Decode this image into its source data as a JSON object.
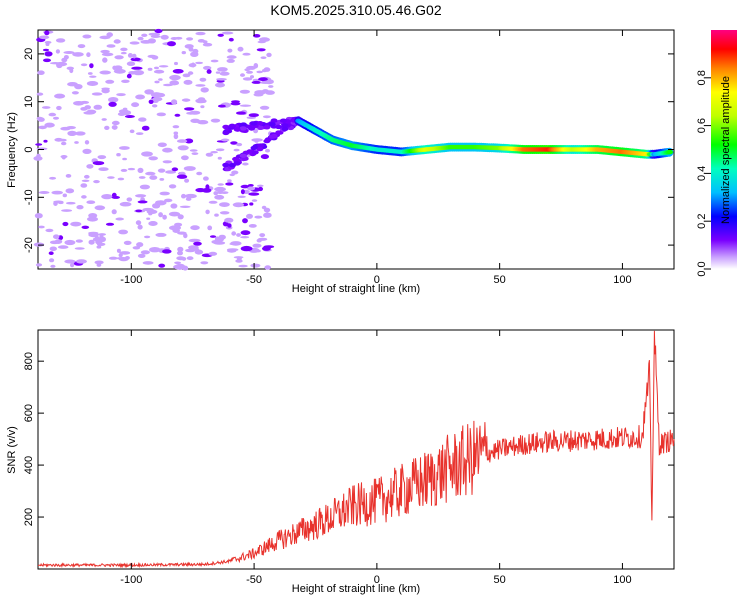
{
  "title": "KOM5.2025.310.05.46.G02",
  "colors": {
    "snr_line": "#e8322c",
    "axis": "#000000"
  },
  "chart_data": [
    {
      "type": "heatmap",
      "name": "spectrogram",
      "xlabel": "Height of straight line (km)",
      "ylabel": "Frequency (Hz)",
      "xlim": [
        -138,
        121
      ],
      "ylim": [
        -25,
        25
      ],
      "xticks": [
        -100,
        -50,
        0,
        50,
        100
      ],
      "yticks": [
        -20,
        -10,
        0,
        10,
        20
      ],
      "colorbar": {
        "label": "Normalized spectral amplitude",
        "range": [
          0,
          1
        ],
        "ticks": [
          "0.0",
          "0.2",
          "0.4",
          "0.6",
          "0.8"
        ],
        "tick_values": [
          0.0,
          0.2,
          0.4,
          0.6,
          0.8
        ]
      },
      "trace": [
        {
          "x": -32,
          "f": 6.0,
          "a": 0.3
        },
        {
          "x": -25,
          "f": 4.0,
          "a": 0.4
        },
        {
          "x": -18,
          "f": 2.0,
          "a": 0.45
        },
        {
          "x": -10,
          "f": 0.8,
          "a": 0.5
        },
        {
          "x": 0,
          "f": 0.0,
          "a": 0.4
        },
        {
          "x": 10,
          "f": -0.5,
          "a": 0.4
        },
        {
          "x": 20,
          "f": 0.0,
          "a": 0.7
        },
        {
          "x": 30,
          "f": 0.5,
          "a": 0.55
        },
        {
          "x": 40,
          "f": 0.5,
          "a": 0.55
        },
        {
          "x": 50,
          "f": 0.3,
          "a": 0.6
        },
        {
          "x": 60,
          "f": 0.0,
          "a": 0.85
        },
        {
          "x": 70,
          "f": 0.0,
          "a": 0.9
        },
        {
          "x": 80,
          "f": 0.0,
          "a": 0.65
        },
        {
          "x": 90,
          "f": 0.0,
          "a": 0.8
        },
        {
          "x": 100,
          "f": -0.5,
          "a": 0.85
        },
        {
          "x": 110,
          "f": -1.0,
          "a": 0.75
        },
        {
          "x": 113,
          "f": -1.0,
          "a": 0.3
        },
        {
          "x": 120,
          "f": -0.5,
          "a": 0.55
        }
      ]
    },
    {
      "type": "line",
      "name": "snr",
      "xlabel": "Height of straight line (km)",
      "ylabel": "SNR (v/v)",
      "xlim": [
        -138,
        121
      ],
      "ylim": [
        0,
        920
      ],
      "xticks": [
        -100,
        -50,
        0,
        50,
        100
      ],
      "yticks": [
        200,
        400,
        600,
        800
      ],
      "series": [
        {
          "name": "SNR",
          "x": [
            -138,
            -100,
            -70,
            -60,
            -50,
            -40,
            -30,
            -20,
            -10,
            0,
            10,
            20,
            30,
            40,
            50,
            60,
            70,
            80,
            90,
            100,
            108,
            111,
            112,
            113,
            115,
            121
          ],
          "y": [
            15,
            15,
            18,
            30,
            60,
            110,
            150,
            190,
            240,
            260,
            300,
            340,
            390,
            430,
            460,
            480,
            490,
            495,
            500,
            505,
            510,
            750,
            180,
            900,
            480,
            500
          ]
        }
      ]
    }
  ]
}
